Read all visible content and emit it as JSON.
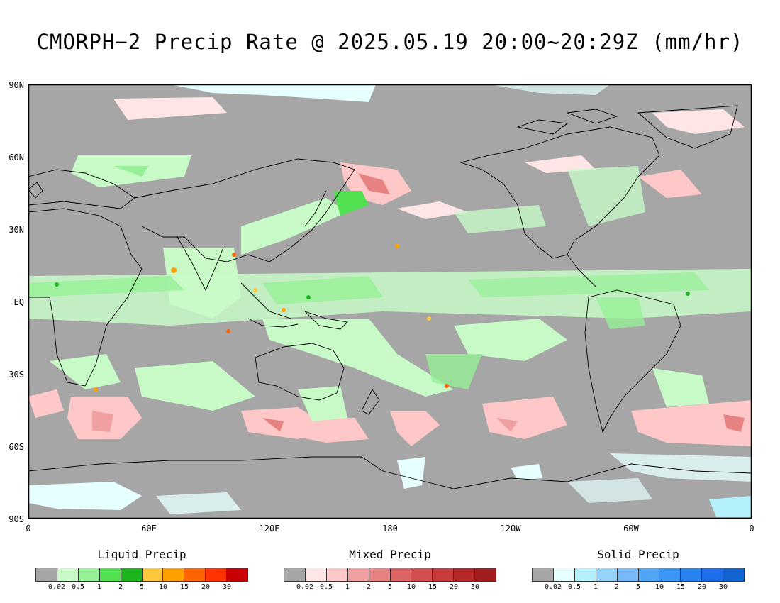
{
  "title": "CMORPH−2 Precip Rate @ 2025.05.19 20:00~20:29Z (mm/hr)",
  "axes": {
    "lat_labels": [
      "90N",
      "60N",
      "30N",
      "EQ",
      "30S",
      "60S",
      "90S"
    ],
    "lon_labels": [
      "0",
      "60E",
      "120E",
      "180",
      "120W",
      "60W",
      "0"
    ]
  },
  "map": {
    "background_color": "#a6a6a6",
    "land_outline_color": "#000000"
  },
  "legends": [
    {
      "title": "Liquid Precip",
      "colors": [
        "#a6a6a6",
        "#c8fac8",
        "#96f096",
        "#50e050",
        "#1eb41e",
        "#ffc83c",
        "#ffa000",
        "#ff6400",
        "#ff3200",
        "#c80000"
      ],
      "ticks": [
        "0.02",
        "0.5",
        "1",
        "2",
        "5",
        "10",
        "15",
        "20",
        "30"
      ]
    },
    {
      "title": "Mixed Precip",
      "colors": [
        "#a6a6a6",
        "#ffe6e6",
        "#ffc8c8",
        "#f0a0a0",
        "#e68282",
        "#dc6464",
        "#d25050",
        "#c83c3c",
        "#b42828",
        "#a01e1e"
      ],
      "ticks": [
        "0.02",
        "0.5",
        "1",
        "2",
        "5",
        "10",
        "15",
        "20",
        "30"
      ]
    },
    {
      "title": "Solid Precip",
      "colors": [
        "#a6a6a6",
        "#e6ffff",
        "#b4f0fa",
        "#96d2fa",
        "#78b9fa",
        "#50a5f5",
        "#3c96f5",
        "#2882f0",
        "#1e6eeb",
        "#1464d2"
      ],
      "ticks": [
        "0.02",
        "0.5",
        "1",
        "2",
        "5",
        "10",
        "15",
        "20",
        "30"
      ]
    }
  ]
}
